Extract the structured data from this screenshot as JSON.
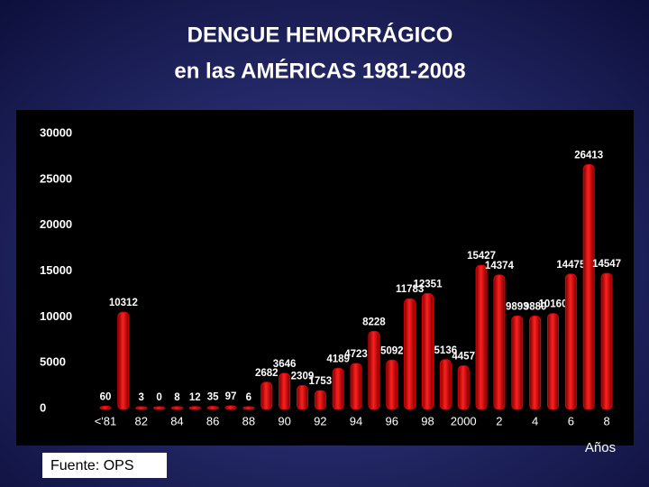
{
  "chart_data": {
    "type": "bar",
    "title": "DENGUE HEMORRÁGICO",
    "subtitle": "en las AMÉRICAS 1981-2008",
    "source": "Fuente: OPS",
    "x_label": "Años",
    "categories": [
      "<'81",
      null,
      "82",
      null,
      "84",
      null,
      "86",
      null,
      "88",
      null,
      "90",
      null,
      "92",
      null,
      "94",
      null,
      "96",
      null,
      "98",
      null,
      "2000",
      null,
      "2",
      null,
      "4",
      null,
      "6",
      null,
      "8"
    ],
    "values": [
      60,
      10312,
      3,
      0,
      8,
      12,
      35,
      97,
      6,
      2682,
      3646,
      2309,
      1753,
      4189,
      4723,
      8228,
      5092,
      11783,
      12351,
      5136,
      4457,
      15427,
      14374,
      9893,
      9880,
      10160,
      14475,
      26413,
      14547
    ],
    "color": "#e00000",
    "ylim": [
      0,
      30000
    ],
    "yticks": [
      0,
      5000,
      10000,
      15000,
      20000,
      25000,
      30000
    ],
    "grid": false
  }
}
